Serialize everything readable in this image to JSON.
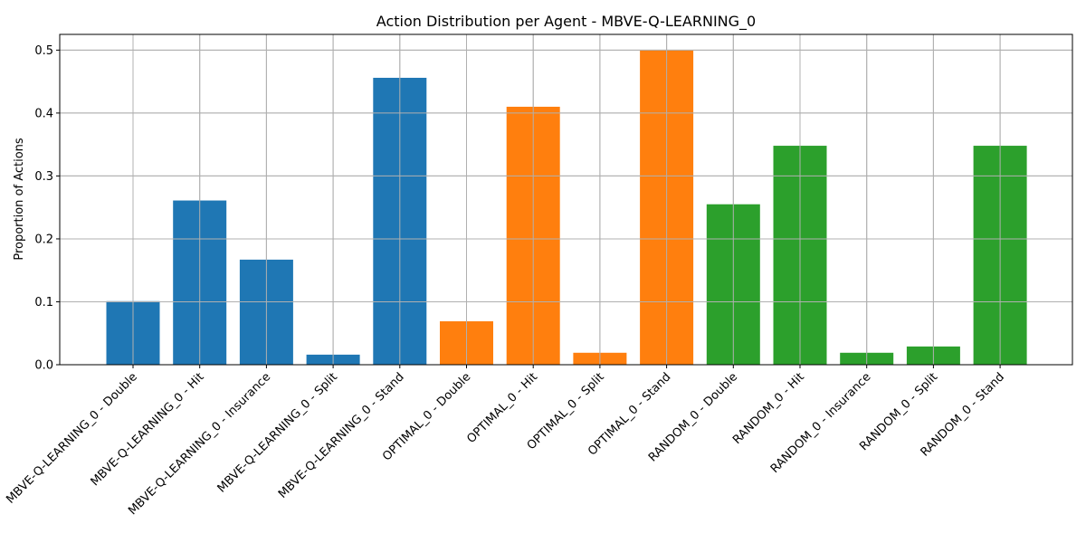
{
  "chart_data": {
    "type": "bar",
    "title": "Action Distribution per Agent - MBVE-Q-LEARNING_0",
    "xlabel": "",
    "ylabel": "Proportion of Actions",
    "ylim": [
      0,
      0.525
    ],
    "yticks": [
      "0.0",
      "0.1",
      "0.2",
      "0.3",
      "0.4",
      "0.5"
    ],
    "grid": true,
    "categories": [
      "MBVE-Q-LEARNING_0 - Double",
      "MBVE-Q-LEARNING_0 - Hit",
      "MBVE-Q-LEARNING_0 - Insurance",
      "MBVE-Q-LEARNING_0 - Split",
      "MBVE-Q-LEARNING_0 - Stand",
      "OPTIMAL_0 - Double",
      "OPTIMAL_0 - Hit",
      "OPTIMAL_0 - Split",
      "OPTIMAL_0 - Stand",
      "RANDOM_0 - Double",
      "RANDOM_0 - Hit",
      "RANDOM_0 - Insurance",
      "RANDOM_0 - Split",
      "RANDOM_0 - Stand"
    ],
    "values": [
      0.101,
      0.261,
      0.167,
      0.016,
      0.456,
      0.069,
      0.41,
      0.019,
      0.5,
      0.255,
      0.348,
      0.019,
      0.029,
      0.348
    ],
    "bar_colors": [
      "#1f77b4",
      "#1f77b4",
      "#1f77b4",
      "#1f77b4",
      "#1f77b4",
      "#ff7f0e",
      "#ff7f0e",
      "#ff7f0e",
      "#ff7f0e",
      "#2ca02c",
      "#2ca02c",
      "#2ca02c",
      "#2ca02c",
      "#2ca02c"
    ]
  }
}
